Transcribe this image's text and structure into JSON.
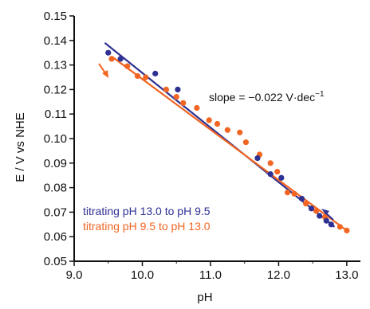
{
  "chart_data": {
    "type": "scatter",
    "title": "",
    "xlabel": "pH",
    "ylabel": "E / V vs NHE",
    "xlim": [
      9.0,
      13.2
    ],
    "ylim": [
      0.05,
      0.15
    ],
    "xticks": [
      "9.0",
      "10.0",
      "11.0",
      "12.0",
      "13.0"
    ],
    "xtick_values": [
      9.0,
      10.0,
      11.0,
      12.0,
      13.0
    ],
    "yticks": [
      "0.05",
      "0.06",
      "0.07",
      "0.08",
      "0.09",
      "0.10",
      "0.11",
      "0.12",
      "0.13",
      "0.14",
      "0.15"
    ],
    "ytick_values": [
      0.05,
      0.06,
      0.07,
      0.08,
      0.09,
      0.1,
      0.11,
      0.12,
      0.13,
      0.14,
      0.15
    ],
    "grid": false,
    "legend_position": "bottom-left",
    "annotation": {
      "prefix": "slope = −0.022 V·dec",
      "superscript": "−1"
    },
    "series": [
      {
        "name": "titrating pH 13.0 to pH 9.5",
        "color": "#2e3192",
        "x": [
          9.5,
          9.68,
          10.19,
          10.52,
          11.69,
          11.88,
          12.04,
          12.34,
          12.48,
          12.6,
          12.7,
          12.77
        ],
        "y": [
          0.135,
          0.1325,
          0.1265,
          0.12,
          0.092,
          0.0855,
          0.084,
          0.0755,
          0.0715,
          0.0685,
          0.0665,
          0.065
        ],
        "fit": {
          "x": [
            9.45,
            12.82
          ],
          "y": [
            0.139,
            0.064
          ]
        }
      },
      {
        "name": "titrating pH 9.5 to pH 13.0",
        "color": "#f26522",
        "x": [
          9.55,
          9.78,
          9.93,
          10.05,
          10.35,
          10.5,
          10.6,
          10.8,
          10.98,
          11.1,
          11.25,
          11.43,
          11.52,
          11.72,
          11.88,
          11.98,
          12.13,
          12.23,
          12.4,
          12.55,
          12.68,
          12.9,
          13.0
        ],
        "y": [
          0.1325,
          0.1295,
          0.1255,
          0.125,
          0.12,
          0.117,
          0.1145,
          0.1125,
          0.1075,
          0.106,
          0.1035,
          0.1025,
          0.0985,
          0.0935,
          0.09,
          0.0865,
          0.078,
          0.0775,
          0.0735,
          0.0705,
          0.068,
          0.064,
          0.0625
        ],
        "fit": {
          "x": [
            9.55,
            13.0
          ],
          "y": [
            0.1335,
            0.0625
          ]
        }
      }
    ]
  }
}
